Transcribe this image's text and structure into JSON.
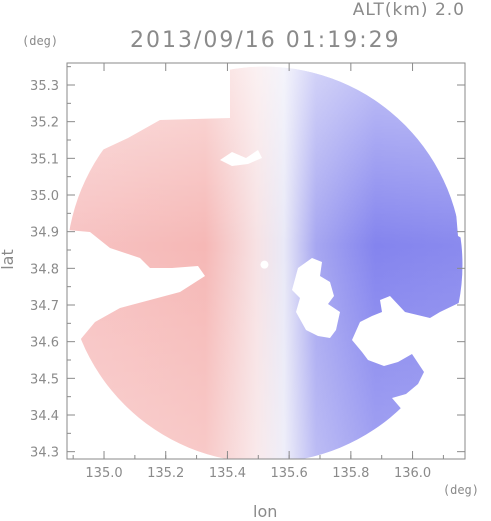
{
  "header": {
    "altitude_label": "ALT(km) 2.0",
    "timestamp": "2013/09/16 01:19:29"
  },
  "chart_data": {
    "type": "heatmap",
    "title": "2013/09/16 01:19:29",
    "subtitle": "ALT(km) 2.0",
    "xlabel": "lon",
    "ylabel": "lat",
    "x_unit": "(deg)",
    "y_unit": "(deg)",
    "xlim": [
      134.88,
      136.17
    ],
    "ylim": [
      34.28,
      35.36
    ],
    "x_ticks": [
      135.0,
      135.2,
      135.4,
      135.6,
      135.8,
      136.0
    ],
    "x_tick_labels": [
      "135.0",
      "135.2",
      "135.4",
      "135.6",
      "135.8",
      "136.0"
    ],
    "y_ticks": [
      34.3,
      34.4,
      34.5,
      34.6,
      34.7,
      34.8,
      34.9,
      35.0,
      35.1,
      35.2,
      35.3
    ],
    "y_tick_labels": [
      "34.3",
      "34.4",
      "34.5",
      "34.6",
      "34.7",
      "34.8",
      "34.9",
      "35.0",
      "35.1",
      "35.2",
      "35.3"
    ],
    "radar_center": {
      "lon": 135.52,
      "lat": 34.81
    },
    "colors": {
      "approaching": "#7b7bf0",
      "receding": "#f6b4b4",
      "neutral": "#f4f4f8",
      "axis": "#8a8a8a"
    },
    "grid": false,
    "legend": "none"
  }
}
